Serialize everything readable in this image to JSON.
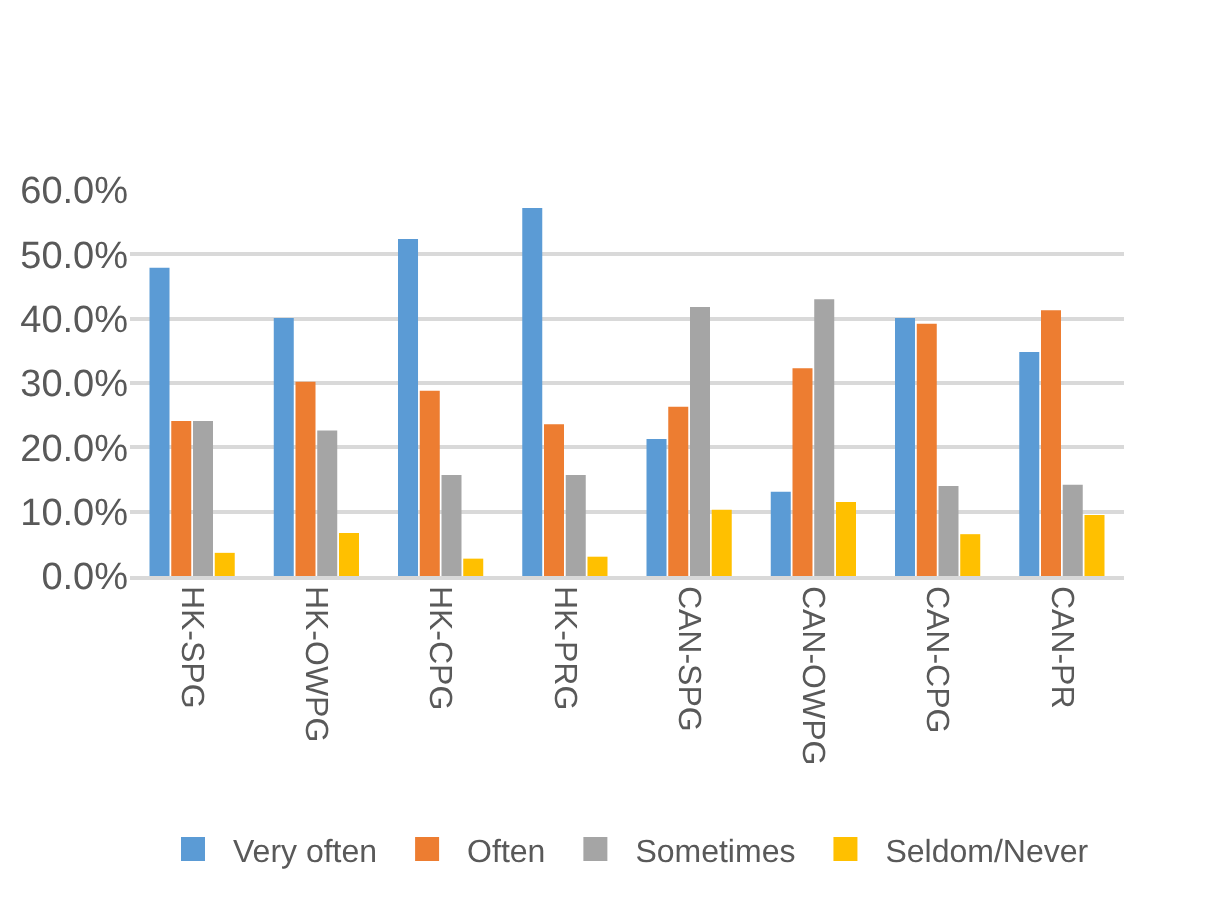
{
  "chart_data": {
    "type": "bar",
    "categories": [
      "HK-SPG",
      "HK-OWPG",
      "HK-CPG",
      "HK-PRG",
      "CAN-SPG",
      "CAN-OWPG",
      "CAN-CPG",
      "CAN-PR"
    ],
    "series": [
      {
        "name": "Very often",
        "color": "#5b9bd5",
        "values": [
          47.9,
          40.1,
          52.4,
          57.2,
          21.3,
          13.1,
          40.1,
          34.8
        ]
      },
      {
        "name": "Often",
        "color": "#ed7d31",
        "values": [
          24.1,
          30.2,
          28.8,
          23.6,
          26.3,
          32.3,
          39.2,
          41.3
        ]
      },
      {
        "name": "Sometimes",
        "color": "#a5a5a5",
        "values": [
          24.1,
          22.6,
          15.7,
          15.7,
          41.8,
          43.0,
          14.0,
          14.2
        ]
      },
      {
        "name": "Seldom/Never",
        "color": "#ffc000",
        "values": [
          3.6,
          6.7,
          2.7,
          3.0,
          10.3,
          11.5,
          6.5,
          9.5
        ]
      }
    ],
    "ylim": [
      0,
      60
    ],
    "yticks": [
      {
        "value": 0,
        "label": "0.0%"
      },
      {
        "value": 10,
        "label": "10.0%"
      },
      {
        "value": 20,
        "label": "20.0%"
      },
      {
        "value": 30,
        "label": "30.0%"
      },
      {
        "value": 40,
        "label": "40.0%"
      },
      {
        "value": 50,
        "label": "50.0%"
      },
      {
        "value": 60,
        "label": "60.0%"
      }
    ],
    "grid": "y",
    "legend": "bottom"
  }
}
